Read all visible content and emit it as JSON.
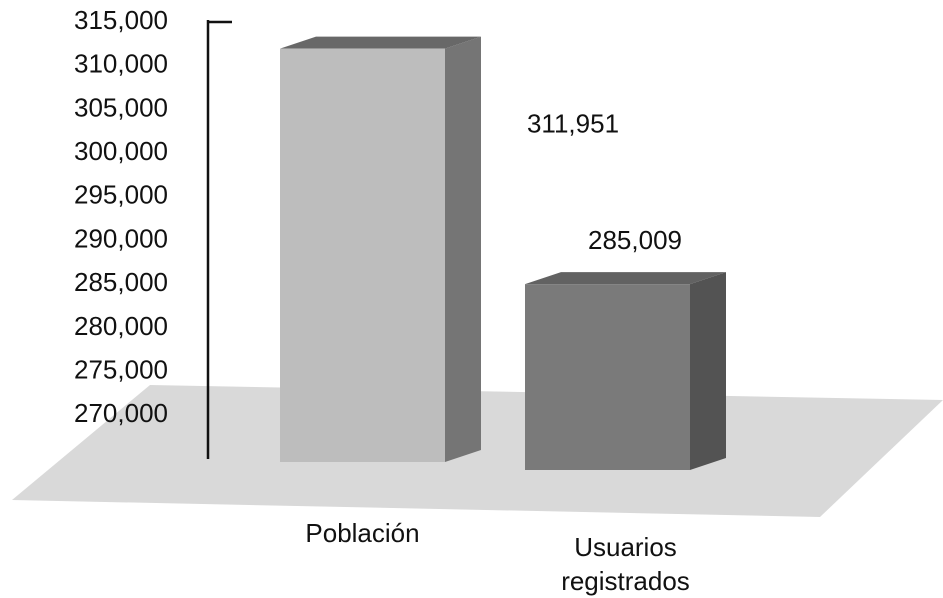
{
  "chart_data": {
    "type": "bar3d",
    "categories": [
      "Población",
      "Usuarios registrados"
    ],
    "values": [
      311951,
      285009
    ],
    "value_labels": [
      "311,951",
      "285,009"
    ],
    "colors": [
      "#bdbdbd",
      "#7a7a7a"
    ],
    "ylim": [
      265000,
      315000
    ],
    "yticks": [
      {
        "value": 270000,
        "label": "270,000"
      },
      {
        "value": 275000,
        "label": "275,000"
      },
      {
        "value": 280000,
        "label": "280,000"
      },
      {
        "value": 285000,
        "label": "285,000"
      },
      {
        "value": 290000,
        "label": "290,000"
      },
      {
        "value": 295000,
        "label": "295,000"
      },
      {
        "value": 300000,
        "label": "300,000"
      },
      {
        "value": 305000,
        "label": "305,000"
      },
      {
        "value": 310000,
        "label": "310,000"
      },
      {
        "value": 315000,
        "label": "315,000"
      }
    ],
    "grid": false
  }
}
